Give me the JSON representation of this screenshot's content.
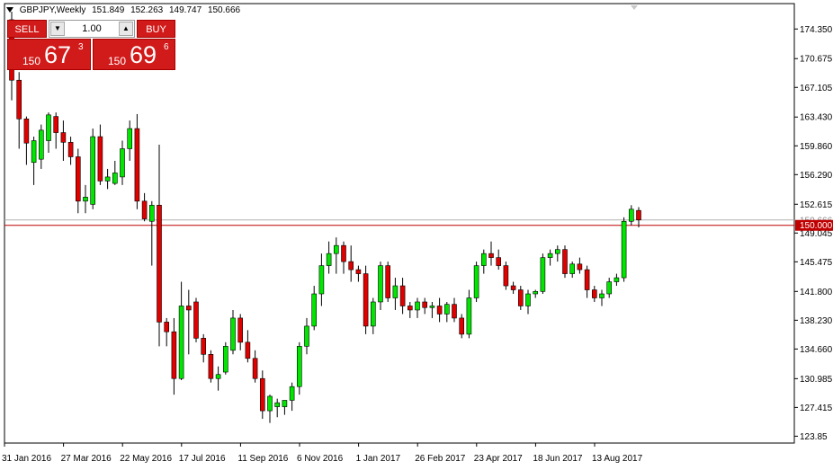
{
  "header": {
    "symbol": "GBPJPY,Weekly",
    "open": "151.849",
    "high": "152.263",
    "low": "149.747",
    "close": "150.666"
  },
  "trade_panel": {
    "sell_label": "SELL",
    "buy_label": "BUY",
    "quantity": "1.00",
    "sell_prefix": "150",
    "sell_big": "67",
    "sell_sup": "3",
    "buy_prefix": "150",
    "buy_big": "69",
    "buy_sup": "6"
  },
  "colors": {
    "bull": "#00e600",
    "bear": "#e00000",
    "wick": "#000000",
    "level": "#c00000",
    "bid": "#b0b0b0"
  },
  "chart_data": {
    "type": "candlestick",
    "title": "",
    "ylim": [
      123.0,
      177.5
    ],
    "yticks": [
      123.85,
      127.415,
      130.985,
      134.66,
      138.23,
      141.8,
      145.475,
      149.045,
      152.615,
      156.29,
      159.86,
      163.43,
      167.105,
      170.675,
      174.35
    ],
    "ytick_labels": [
      "123.85",
      "127.415",
      "130.985",
      "134.660",
      "138.230",
      "141.800",
      "145.475",
      "149.045",
      "152.615",
      "156.290",
      "159.860",
      "163.430",
      "167.105",
      "170.675",
      "174.350"
    ],
    "xtick_labels": [
      {
        "index": 0,
        "label": "31 Jan 2016"
      },
      {
        "index": 8,
        "label": "27 Mar 2016"
      },
      {
        "index": 16,
        "label": "22 May 2016"
      },
      {
        "index": 24,
        "label": "17 Jul 2016"
      },
      {
        "index": 32,
        "label": "11 Sep 2016"
      },
      {
        "index": 40,
        "label": "6 Nov 2016"
      },
      {
        "index": 48,
        "label": "1 Jan 2017"
      },
      {
        "index": 56,
        "label": "26 Feb 2017"
      },
      {
        "index": 64,
        "label": "23 Apr 2017"
      },
      {
        "index": 72,
        "label": "18 Jun 2017"
      },
      {
        "index": 80,
        "label": "13 Aug 2017"
      }
    ],
    "level_line": {
      "value": 150.0,
      "label": "150.000"
    },
    "bid_line": {
      "value": 150.666,
      "label": "150.666"
    },
    "candles": [
      {
        "o": 175.5,
        "h": 176.5,
        "l": 165.5,
        "c": 168.0
      },
      {
        "o": 168.0,
        "h": 169.0,
        "l": 159.5,
        "c": 163.2
      },
      {
        "o": 163.2,
        "h": 163.5,
        "l": 157.5,
        "c": 160.2
      },
      {
        "o": 157.8,
        "h": 161.0,
        "l": 155.0,
        "c": 160.5
      },
      {
        "o": 158.2,
        "h": 162.5,
        "l": 157.0,
        "c": 161.8
      },
      {
        "o": 160.5,
        "h": 164.0,
        "l": 159.0,
        "c": 163.7
      },
      {
        "o": 163.5,
        "h": 164.0,
        "l": 159.5,
        "c": 161.5
      },
      {
        "o": 161.5,
        "h": 163.0,
        "l": 158.0,
        "c": 160.3
      },
      {
        "o": 160.3,
        "h": 161.0,
        "l": 157.5,
        "c": 158.5
      },
      {
        "o": 158.5,
        "h": 159.5,
        "l": 151.5,
        "c": 153.0
      },
      {
        "o": 153.0,
        "h": 155.0,
        "l": 151.5,
        "c": 153.5
      },
      {
        "o": 152.6,
        "h": 162.0,
        "l": 152.0,
        "c": 161.0
      },
      {
        "o": 161.0,
        "h": 162.5,
        "l": 155.0,
        "c": 155.5
      },
      {
        "o": 155.5,
        "h": 157.0,
        "l": 154.5,
        "c": 156.0
      },
      {
        "o": 155.2,
        "h": 158.0,
        "l": 155.0,
        "c": 156.5
      },
      {
        "o": 156.0,
        "h": 160.5,
        "l": 155.0,
        "c": 159.5
      },
      {
        "o": 159.5,
        "h": 163.0,
        "l": 158.0,
        "c": 162.0
      },
      {
        "o": 162.0,
        "h": 163.8,
        "l": 152.0,
        "c": 153.0
      },
      {
        "o": 153.0,
        "h": 154.0,
        "l": 150.5,
        "c": 150.8
      },
      {
        "o": 150.5,
        "h": 153.0,
        "l": 145.0,
        "c": 152.5
      },
      {
        "o": 152.5,
        "h": 160.0,
        "l": 135.0,
        "c": 138.0
      },
      {
        "o": 138.0,
        "h": 138.5,
        "l": 135.0,
        "c": 136.8
      },
      {
        "o": 136.8,
        "h": 138.5,
        "l": 129.0,
        "c": 131.0
      },
      {
        "o": 131.0,
        "h": 143.0,
        "l": 130.8,
        "c": 140.0
      },
      {
        "o": 140.0,
        "h": 142.0,
        "l": 134.0,
        "c": 139.5
      },
      {
        "o": 140.5,
        "h": 141.0,
        "l": 135.5,
        "c": 136.0
      },
      {
        "o": 136.0,
        "h": 136.5,
        "l": 133.0,
        "c": 134.0
      },
      {
        "o": 134.0,
        "h": 134.5,
        "l": 130.5,
        "c": 131.0
      },
      {
        "o": 131.0,
        "h": 132.5,
        "l": 129.5,
        "c": 131.5
      },
      {
        "o": 131.8,
        "h": 135.5,
        "l": 131.5,
        "c": 135.0
      },
      {
        "o": 134.5,
        "h": 139.5,
        "l": 134.0,
        "c": 138.5
      },
      {
        "o": 138.5,
        "h": 139.0,
        "l": 134.5,
        "c": 135.5
      },
      {
        "o": 135.5,
        "h": 137.0,
        "l": 133.0,
        "c": 133.5
      },
      {
        "o": 133.5,
        "h": 134.5,
        "l": 130.5,
        "c": 131.0
      },
      {
        "o": 131.0,
        "h": 132.0,
        "l": 126.0,
        "c": 127.0
      },
      {
        "o": 127.0,
        "h": 129.0,
        "l": 125.5,
        "c": 128.8
      },
      {
        "o": 127.5,
        "h": 128.5,
        "l": 126.2,
        "c": 128.0
      },
      {
        "o": 127.5,
        "h": 128.0,
        "l": 126.5,
        "c": 128.3
      },
      {
        "o": 128.3,
        "h": 130.5,
        "l": 127.0,
        "c": 130.0
      },
      {
        "o": 130.0,
        "h": 135.5,
        "l": 129.0,
        "c": 135.0
      },
      {
        "o": 135.0,
        "h": 138.5,
        "l": 134.0,
        "c": 137.5
      },
      {
        "o": 137.5,
        "h": 142.5,
        "l": 137.0,
        "c": 141.5
      },
      {
        "o": 141.5,
        "h": 146.5,
        "l": 140.0,
        "c": 145.0
      },
      {
        "o": 145.0,
        "h": 148.0,
        "l": 144.0,
        "c": 146.5
      },
      {
        "o": 146.5,
        "h": 148.5,
        "l": 144.0,
        "c": 147.5
      },
      {
        "o": 147.5,
        "h": 148.0,
        "l": 144.0,
        "c": 145.5
      },
      {
        "o": 145.5,
        "h": 147.5,
        "l": 143.0,
        "c": 144.5
      },
      {
        "o": 144.5,
        "h": 145.0,
        "l": 143.0,
        "c": 144.0
      },
      {
        "o": 144.0,
        "h": 145.0,
        "l": 136.5,
        "c": 137.5
      },
      {
        "o": 137.5,
        "h": 141.0,
        "l": 136.5,
        "c": 140.5
      },
      {
        "o": 140.5,
        "h": 145.5,
        "l": 139.5,
        "c": 145.0
      },
      {
        "o": 145.0,
        "h": 145.5,
        "l": 140.5,
        "c": 141.0
      },
      {
        "o": 141.0,
        "h": 143.5,
        "l": 139.5,
        "c": 142.5
      },
      {
        "o": 142.5,
        "h": 143.5,
        "l": 139.0,
        "c": 140.0
      },
      {
        "o": 140.0,
        "h": 140.5,
        "l": 138.5,
        "c": 139.5
      },
      {
        "o": 139.5,
        "h": 141.0,
        "l": 138.5,
        "c": 140.5
      },
      {
        "o": 140.5,
        "h": 141.0,
        "l": 139.0,
        "c": 139.8
      },
      {
        "o": 139.8,
        "h": 140.5,
        "l": 138.5,
        "c": 140.0
      },
      {
        "o": 140.0,
        "h": 141.0,
        "l": 138.0,
        "c": 139.0
      },
      {
        "o": 139.0,
        "h": 140.5,
        "l": 138.0,
        "c": 140.2
      },
      {
        "o": 140.2,
        "h": 141.0,
        "l": 138.0,
        "c": 138.5
      },
      {
        "o": 138.5,
        "h": 139.0,
        "l": 136.0,
        "c": 136.5
      },
      {
        "o": 136.5,
        "h": 142.0,
        "l": 136.0,
        "c": 141.0
      },
      {
        "o": 141.0,
        "h": 145.5,
        "l": 140.5,
        "c": 145.0
      },
      {
        "o": 145.0,
        "h": 147.0,
        "l": 144.0,
        "c": 146.5
      },
      {
        "o": 146.5,
        "h": 148.0,
        "l": 145.0,
        "c": 146.0
      },
      {
        "o": 146.0,
        "h": 147.0,
        "l": 144.5,
        "c": 145.0
      },
      {
        "o": 145.0,
        "h": 145.5,
        "l": 142.0,
        "c": 142.5
      },
      {
        "o": 142.5,
        "h": 143.0,
        "l": 141.5,
        "c": 142.0
      },
      {
        "o": 142.0,
        "h": 142.5,
        "l": 139.5,
        "c": 140.0
      },
      {
        "o": 140.0,
        "h": 142.0,
        "l": 139.0,
        "c": 141.5
      },
      {
        "o": 141.5,
        "h": 142.0,
        "l": 141.0,
        "c": 141.8
      },
      {
        "o": 141.8,
        "h": 146.5,
        "l": 141.5,
        "c": 146.0
      },
      {
        "o": 146.0,
        "h": 147.0,
        "l": 145.0,
        "c": 146.5
      },
      {
        "o": 146.5,
        "h": 147.5,
        "l": 145.5,
        "c": 147.0
      },
      {
        "o": 147.0,
        "h": 147.5,
        "l": 143.5,
        "c": 144.0
      },
      {
        "o": 144.0,
        "h": 145.5,
        "l": 143.5,
        "c": 145.2
      },
      {
        "o": 145.2,
        "h": 146.0,
        "l": 144.0,
        "c": 144.5
      },
      {
        "o": 144.5,
        "h": 145.0,
        "l": 141.0,
        "c": 142.0
      },
      {
        "o": 142.0,
        "h": 142.5,
        "l": 140.5,
        "c": 141.0
      },
      {
        "o": 141.0,
        "h": 142.0,
        "l": 140.0,
        "c": 141.5
      },
      {
        "o": 141.5,
        "h": 143.5,
        "l": 141.0,
        "c": 143.0
      },
      {
        "o": 143.0,
        "h": 144.0,
        "l": 142.5,
        "c": 143.5
      },
      {
        "o": 143.5,
        "h": 151.0,
        "l": 143.0,
        "c": 150.5
      },
      {
        "o": 150.5,
        "h": 152.5,
        "l": 150.0,
        "c": 152.0
      },
      {
        "o": 151.849,
        "h": 152.263,
        "l": 149.747,
        "c": 150.666
      }
    ]
  }
}
